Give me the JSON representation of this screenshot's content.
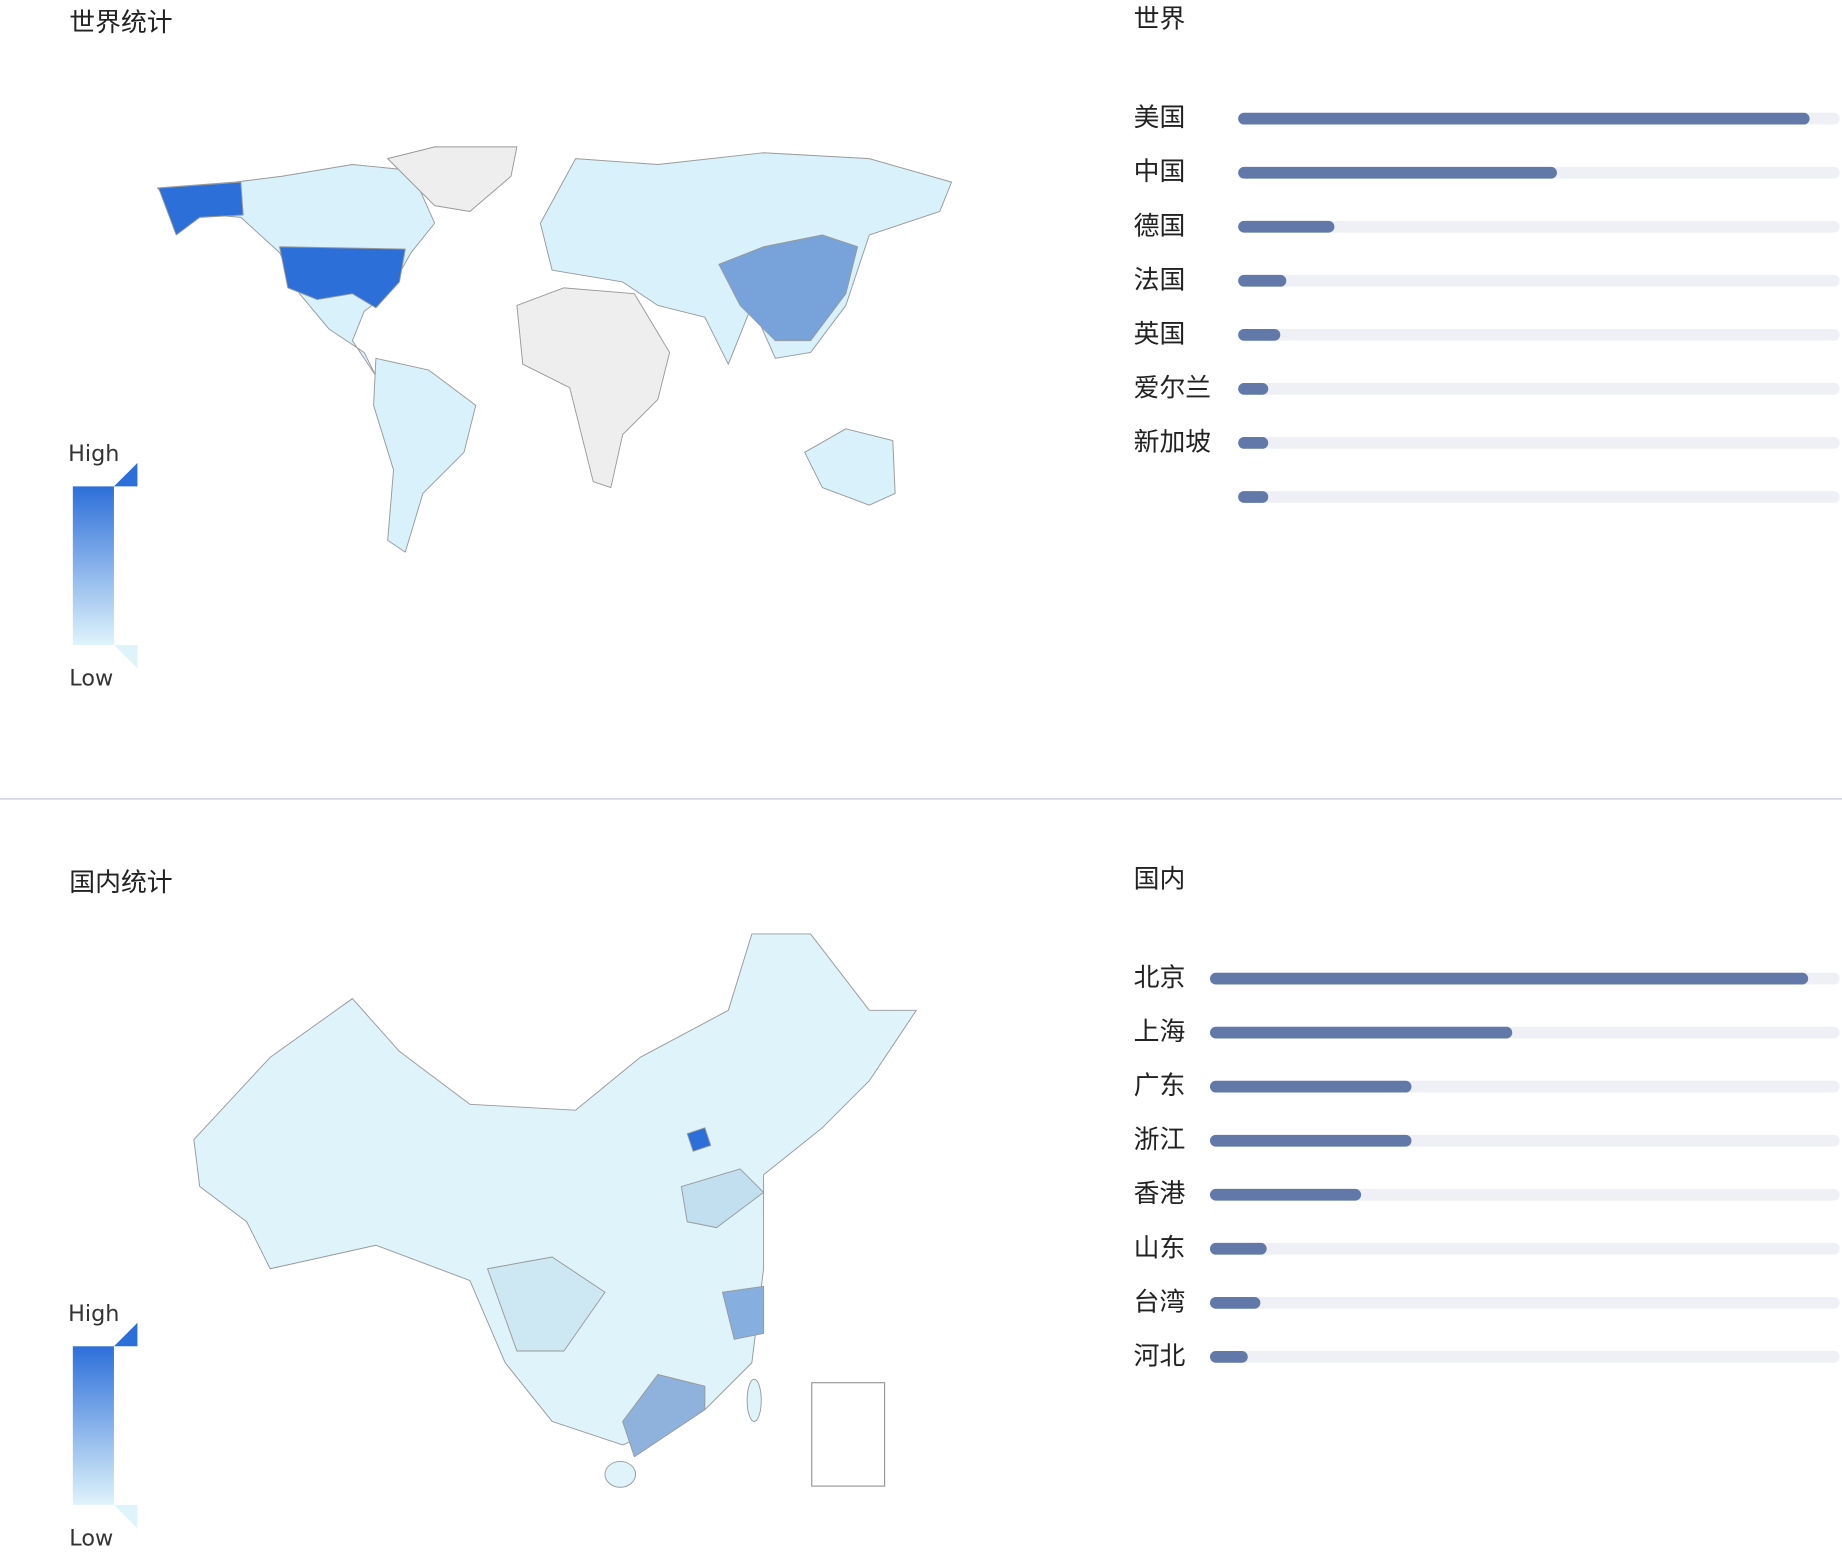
{
  "chart_data": [
    {
      "type": "map",
      "title": "世界统计",
      "visual_map": {
        "high": "High",
        "low": "Low"
      },
      "range_colors": [
        "#dff3fb",
        "#2d6fd9"
      ]
    },
    {
      "type": "bar",
      "title": "世界",
      "categories": [
        "美国",
        "中国",
        "德国",
        "法国",
        "英国",
        "爱尔兰",
        "新加坡",
        null
      ],
      "values": [
        95,
        53,
        16,
        8,
        7,
        5,
        5,
        5
      ],
      "xlim": [
        0,
        100
      ],
      "color": "#6178a8",
      "track_color": "#eef0f6"
    },
    {
      "type": "map",
      "title": "国内统计",
      "visual_map": {
        "high": "High",
        "low": "Low"
      },
      "range_colors": [
        "#dff3fb",
        "#2d6fd9"
      ]
    },
    {
      "type": "bar",
      "title": "国内",
      "categories": [
        "北京",
        "上海",
        "广东",
        "浙江",
        "香港",
        "山东",
        "台湾",
        "河北"
      ],
      "values": [
        95,
        48,
        32,
        32,
        24,
        9,
        8,
        6
      ],
      "xlim": [
        0,
        100
      ],
      "color": "#6178a8",
      "track_color": "#eef0f6"
    }
  ]
}
